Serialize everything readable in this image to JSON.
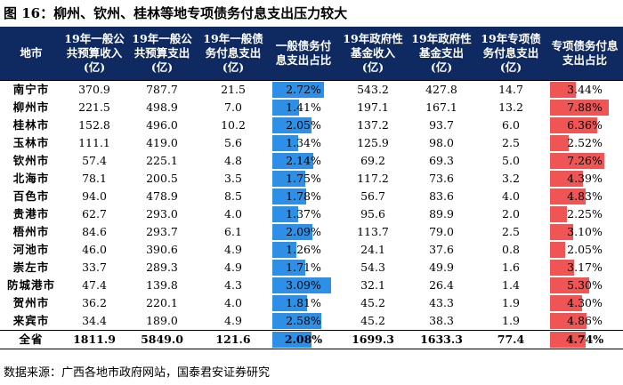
{
  "title": "图 16：柳州、钦州、桂林等地专项债务付息支出压力较大",
  "headers": [
    "地市",
    "19年一般公共预算收入(亿)",
    "19年一般公共预算支出(亿)",
    "19年一般债务付息支出(亿)",
    "一般债务付息支出占比",
    "19年政府性基金收入(亿)",
    "19年政府性基金支出(亿)",
    "19年专项债务付息支出(亿)",
    "专项债务付息支出占比"
  ],
  "rows": [
    {
      "city": "南宁市",
      "rev": "370.9",
      "exp": "787.7",
      "gint": "21.5",
      "gratio": "2.72%",
      "fund_rev": "543.2",
      "fund_exp": "427.8",
      "sint": "14.7",
      "sratio": "3.44%"
    },
    {
      "city": "柳州市",
      "rev": "221.5",
      "exp": "498.9",
      "gint": "7.0",
      "gratio": "1.41%",
      "fund_rev": "197.1",
      "fund_exp": "167.1",
      "sint": "13.2",
      "sratio": "7.88%"
    },
    {
      "city": "桂林市",
      "rev": "152.8",
      "exp": "496.0",
      "gint": "10.2",
      "gratio": "2.05%",
      "fund_rev": "137.2",
      "fund_exp": "93.7",
      "sint": "6.0",
      "sratio": "6.36%"
    },
    {
      "city": "玉林市",
      "rev": "111.1",
      "exp": "419.0",
      "gint": "5.6",
      "gratio": "1.34%",
      "fund_rev": "125.9",
      "fund_exp": "98.0",
      "sint": "2.5",
      "sratio": "2.52%"
    },
    {
      "city": "钦州市",
      "rev": "57.4",
      "exp": "225.1",
      "gint": "4.8",
      "gratio": "2.14%",
      "fund_rev": "69.2",
      "fund_exp": "69.3",
      "sint": "5.0",
      "sratio": "7.26%"
    },
    {
      "city": "北海市",
      "rev": "78.1",
      "exp": "200.5",
      "gint": "3.5",
      "gratio": "1.75%",
      "fund_rev": "117.2",
      "fund_exp": "73.6",
      "sint": "3.2",
      "sratio": "4.39%"
    },
    {
      "city": "百色市",
      "rev": "94.0",
      "exp": "478.9",
      "gint": "8.5",
      "gratio": "1.78%",
      "fund_rev": "56.7",
      "fund_exp": "83.6",
      "sint": "4.0",
      "sratio": "4.83%"
    },
    {
      "city": "贵港市",
      "rev": "62.7",
      "exp": "293.0",
      "gint": "4.0",
      "gratio": "1.37%",
      "fund_rev": "95.6",
      "fund_exp": "89.9",
      "sint": "2.0",
      "sratio": "2.25%"
    },
    {
      "city": "梧州市",
      "rev": "84.6",
      "exp": "293.7",
      "gint": "6.1",
      "gratio": "2.09%",
      "fund_rev": "113.7",
      "fund_exp": "79.0",
      "sint": "2.5",
      "sratio": "3.10%"
    },
    {
      "city": "河池市",
      "rev": "46.0",
      "exp": "390.6",
      "gint": "4.9",
      "gratio": "1.26%",
      "fund_rev": "24.1",
      "fund_exp": "37.6",
      "sint": "0.8",
      "sratio": "2.05%"
    },
    {
      "city": "崇左市",
      "rev": "33.7",
      "exp": "289.3",
      "gint": "4.9",
      "gratio": "1.71%",
      "fund_rev": "54.3",
      "fund_exp": "49.9",
      "sint": "1.6",
      "sratio": "3.17%"
    },
    {
      "city": "防城港市",
      "rev": "47.4",
      "exp": "139.8",
      "gint": "4.3",
      "gratio": "3.09%",
      "fund_rev": "32.1",
      "fund_exp": "26.4",
      "sint": "1.4",
      "sratio": "5.30%"
    },
    {
      "city": "贺州市",
      "rev": "36.2",
      "exp": "220.1",
      "gint": "4.0",
      "gratio": "1.81%",
      "fund_rev": "45.2",
      "fund_exp": "43.3",
      "sint": "1.9",
      "sratio": "4.30%"
    },
    {
      "city": "来宾市",
      "rev": "34.4",
      "exp": "189.0",
      "gint": "4.9",
      "gratio": "2.58%",
      "fund_rev": "45.2",
      "fund_exp": "38.3",
      "sint": "1.9",
      "sratio": "4.86%"
    }
  ],
  "total": {
    "city": "全省",
    "rev": "1811.9",
    "exp": "5849.0",
    "gint": "121.6",
    "gratio": "2.08%",
    "fund_rev": "1699.3",
    "fund_exp": "1633.3",
    "sint": "77.4",
    "sratio": "4.74%"
  },
  "bar_scale_max": {
    "gratio": 3.09,
    "sratio": 7.88
  },
  "colors": {
    "header_bg": "#0f2a60",
    "blue_bar": "#2e8fe6",
    "red_bar": "#f05555"
  },
  "source": "数据来源：广西各地市政府网站，国泰君安证券研究"
}
